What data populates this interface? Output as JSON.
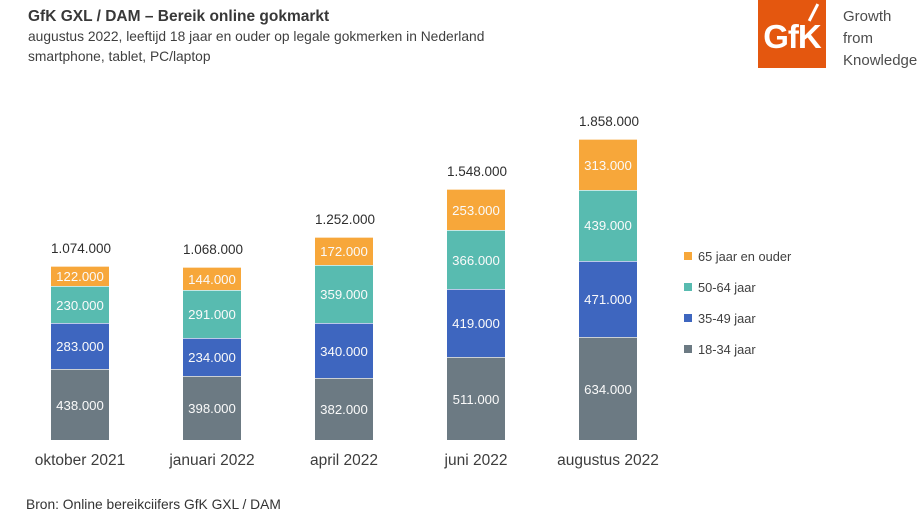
{
  "header": {
    "title": "GfK GXL / DAM – Bereik online gokmarkt",
    "subtitle_line1": "augustus 2022, leeftijd 18 jaar en ouder op legale gokmerken in Nederland",
    "subtitle_line2": "smartphone, tablet, PC/laptop"
  },
  "logo": {
    "text": "GfK",
    "tagline_lines": [
      "Growth",
      "from",
      "Knowledge"
    ],
    "brand_color": "#E4570F"
  },
  "footer": {
    "source": "Bron: Online bereikciifers GfK GXL / DAM"
  },
  "chart_data": {
    "type": "bar",
    "stacked": true,
    "title": "GfK GXL / DAM – Bereik online gokmarkt",
    "categories": [
      "oktober 2021",
      "januari 2022",
      "april 2022",
      "juni 2022",
      "augustus 2022"
    ],
    "series": [
      {
        "name": "18-34 jaar",
        "color": "#6C7A83",
        "values": [
          438000,
          398000,
          382000,
          511000,
          634000
        ]
      },
      {
        "name": "35-49 jaar",
        "color": "#3E66BF",
        "values": [
          283000,
          234000,
          340000,
          419000,
          471000
        ]
      },
      {
        "name": "50-64 jaar",
        "color": "#58BBB0",
        "values": [
          230000,
          291000,
          359000,
          366000,
          439000
        ]
      },
      {
        "name": "65 jaar en ouder",
        "color": "#F7A73A",
        "values": [
          122000,
          144000,
          172000,
          253000,
          313000
        ]
      }
    ],
    "totals": [
      1074000,
      1068000,
      1252000,
      1548000,
      1858000
    ],
    "totals_formatted": [
      "1.074.000",
      "1.068.000",
      "1.252.000",
      "1.548.000",
      "1.858.000"
    ],
    "value_label_style": "thousands separated with dots, white text inside segments",
    "legend_position": "right",
    "legend_order_top_to_bottom": [
      "65 jaar en ouder",
      "50-64 jaar",
      "35-49 jaar",
      "18-34 jaar"
    ],
    "xlabel": "",
    "ylabel": "",
    "grid": false,
    "axis_lines": false
  }
}
